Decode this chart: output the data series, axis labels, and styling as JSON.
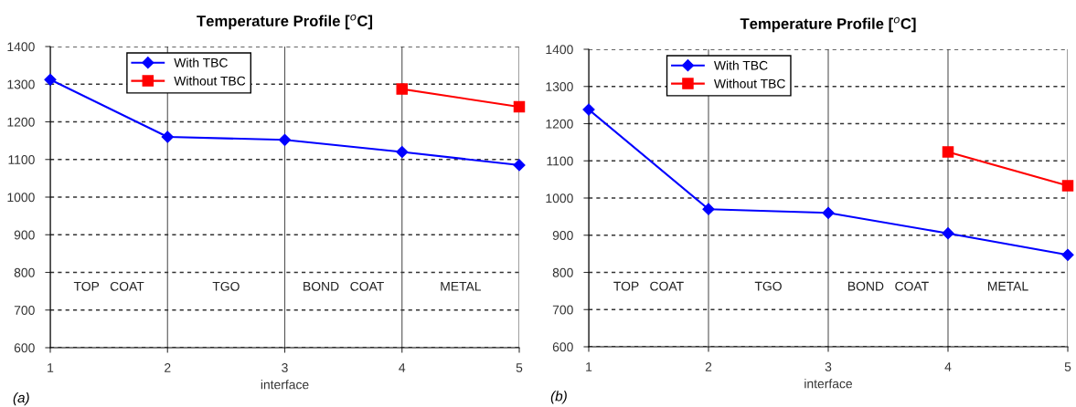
{
  "chart_data": [
    {
      "type": "line",
      "title": "Temperature Profile [$^{o}$C]",
      "xlabel": "interface",
      "x": [
        1,
        2,
        3,
        4,
        5
      ],
      "xlim": [
        1,
        5
      ],
      "xticks": [
        1,
        2,
        3,
        4,
        5
      ],
      "ylim": [
        600,
        1400
      ],
      "yticks": [
        600,
        700,
        800,
        900,
        1000,
        1100,
        1200,
        1300,
        1400
      ],
      "grid": true,
      "legend": "top left",
      "series": [
        {
          "name": "With TBC",
          "color": "#0000ff",
          "marker": "diamond",
          "values": [
            1312,
            1160,
            1152,
            1120,
            1085
          ]
        },
        {
          "name": "Without TBC",
          "color": "#ff0000",
          "marker": "square",
          "values": [
            null,
            null,
            null,
            1287,
            1240
          ]
        }
      ],
      "annotations": [
        "TOP   COAT",
        "TGO",
        "BOND   COAT",
        "METAL",
        "(a)"
      ]
    },
    {
      "type": "line",
      "title": "Temperature Profile [$^{o}$C]",
      "xlabel": "interface",
      "x": [
        1,
        2,
        3,
        4,
        5
      ],
      "xlim": [
        1,
        5
      ],
      "xticks": [
        1,
        2,
        3,
        4,
        5
      ],
      "ylim": [
        600,
        1400
      ],
      "yticks": [
        600,
        700,
        800,
        900,
        1000,
        1100,
        1200,
        1300,
        1400
      ],
      "grid": true,
      "legend": "top left",
      "series": [
        {
          "name": "With TBC",
          "color": "#0000ff",
          "marker": "diamond",
          "values": [
            1238,
            970,
            960,
            905,
            847
          ]
        },
        {
          "name": "Without TBC",
          "color": "#ff0000",
          "marker": "square",
          "values": [
            null,
            null,
            null,
            1124,
            1033
          ]
        }
      ],
      "annotations": [
        "TOP   COAT",
        "TGO",
        "BOND   COAT",
        "METAL",
        "(b)"
      ]
    }
  ]
}
